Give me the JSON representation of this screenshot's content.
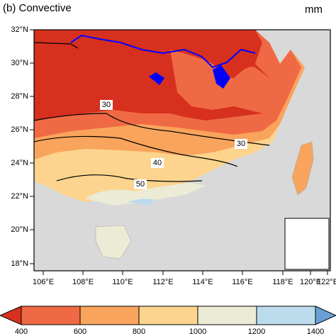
{
  "title": "(b) Convective",
  "unit": "mm",
  "lat_labels": [
    "32°N",
    "30°N",
    "28°N",
    "26°N",
    "24°N",
    "22°N",
    "20°N",
    "18°N"
  ],
  "lon_labels": [
    "106°E",
    "108°E",
    "110°E",
    "112°E",
    "114°E",
    "116°E",
    "118°E",
    "120°E",
    "122°E"
  ],
  "contour_labels": [
    "30",
    "30",
    "40",
    "50"
  ],
  "colorbar": {
    "colors": [
      "#d7301f",
      "#ef6a44",
      "#f9a45c",
      "#fdd48e",
      "#ececd6",
      "#bcdcee",
      "#6a9fd6"
    ],
    "ticks": [
      400,
      600,
      800,
      1000,
      1200,
      1400
    ]
  }
}
